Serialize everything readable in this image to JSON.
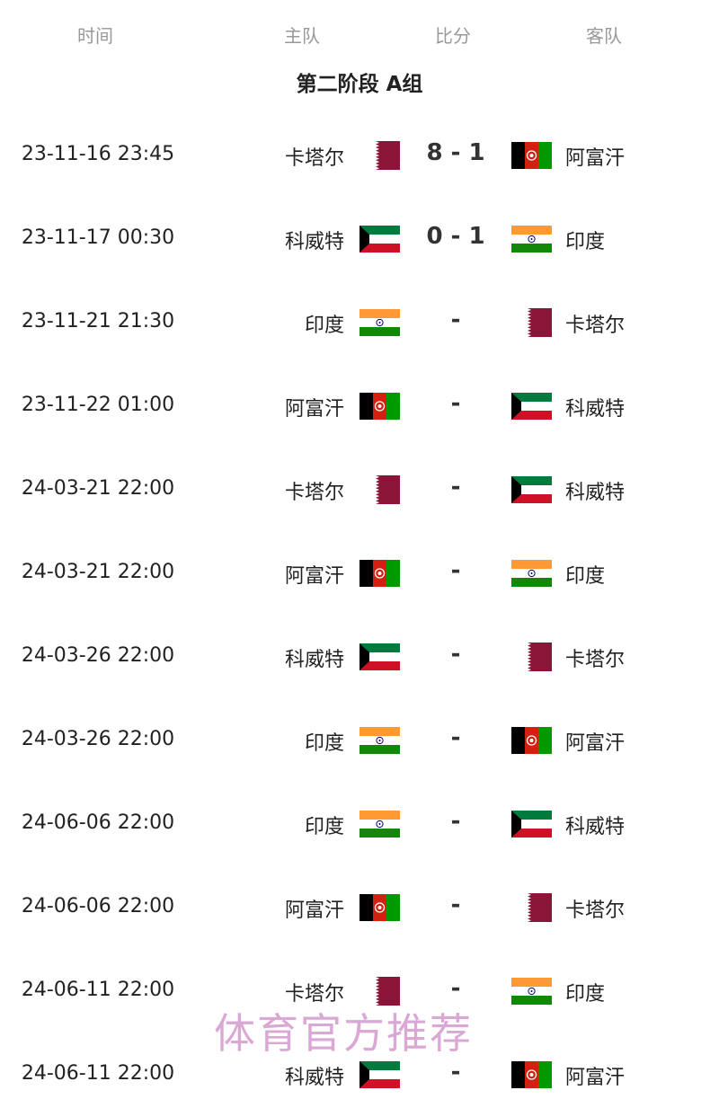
{
  "header": {
    "time": "时间",
    "home": "主队",
    "score": "比分",
    "away": "客队"
  },
  "title": "第二阶段 A组",
  "flag_colors": {
    "qatar": "#8a1538",
    "kuwait_green": "#007a3d",
    "kuwait_red": "#ce1126",
    "india_saffron": "#ff9933",
    "india_green": "#138808",
    "afghan_red": "#d32011",
    "afghan_green": "#009900"
  },
  "matches": [
    {
      "time": "23-11-16 23:45",
      "home": "卡塔尔",
      "home_flag": "qatar",
      "score": "8 - 1",
      "away": "阿富汗",
      "away_flag": "afghanistan"
    },
    {
      "time": "23-11-17 00:30",
      "home": "科威特",
      "home_flag": "kuwait",
      "score": "0 - 1",
      "away": "印度",
      "away_flag": "india"
    },
    {
      "time": "23-11-21 21:30",
      "home": "印度",
      "home_flag": "india",
      "score": "-",
      "away": "卡塔尔",
      "away_flag": "qatar"
    },
    {
      "time": "23-11-22 01:00",
      "home": "阿富汗",
      "home_flag": "afghanistan",
      "score": "-",
      "away": "科威特",
      "away_flag": "kuwait"
    },
    {
      "time": "24-03-21 22:00",
      "home": "卡塔尔",
      "home_flag": "qatar",
      "score": "-",
      "away": "科威特",
      "away_flag": "kuwait"
    },
    {
      "time": "24-03-21 22:00",
      "home": "阿富汗",
      "home_flag": "afghanistan",
      "score": "-",
      "away": "印度",
      "away_flag": "india"
    },
    {
      "time": "24-03-26 22:00",
      "home": "科威特",
      "home_flag": "kuwait",
      "score": "-",
      "away": "卡塔尔",
      "away_flag": "qatar"
    },
    {
      "time": "24-03-26 22:00",
      "home": "印度",
      "home_flag": "india",
      "score": "-",
      "away": "阿富汗",
      "away_flag": "afghanistan"
    },
    {
      "time": "24-06-06 22:00",
      "home": "印度",
      "home_flag": "india",
      "score": "-",
      "away": "科威特",
      "away_flag": "kuwait"
    },
    {
      "time": "24-06-06 22:00",
      "home": "阿富汗",
      "home_flag": "afghanistan",
      "score": "-",
      "away": "卡塔尔",
      "away_flag": "qatar"
    },
    {
      "time": "24-06-11 22:00",
      "home": "卡塔尔",
      "home_flag": "qatar",
      "score": "-",
      "away": "印度",
      "away_flag": "india"
    },
    {
      "time": "24-06-11 22:00",
      "home": "科威特",
      "home_flag": "kuwait",
      "score": "-",
      "away": "阿富汗",
      "away_flag": "afghanistan"
    }
  ],
  "watermark": "体育官方推荐"
}
